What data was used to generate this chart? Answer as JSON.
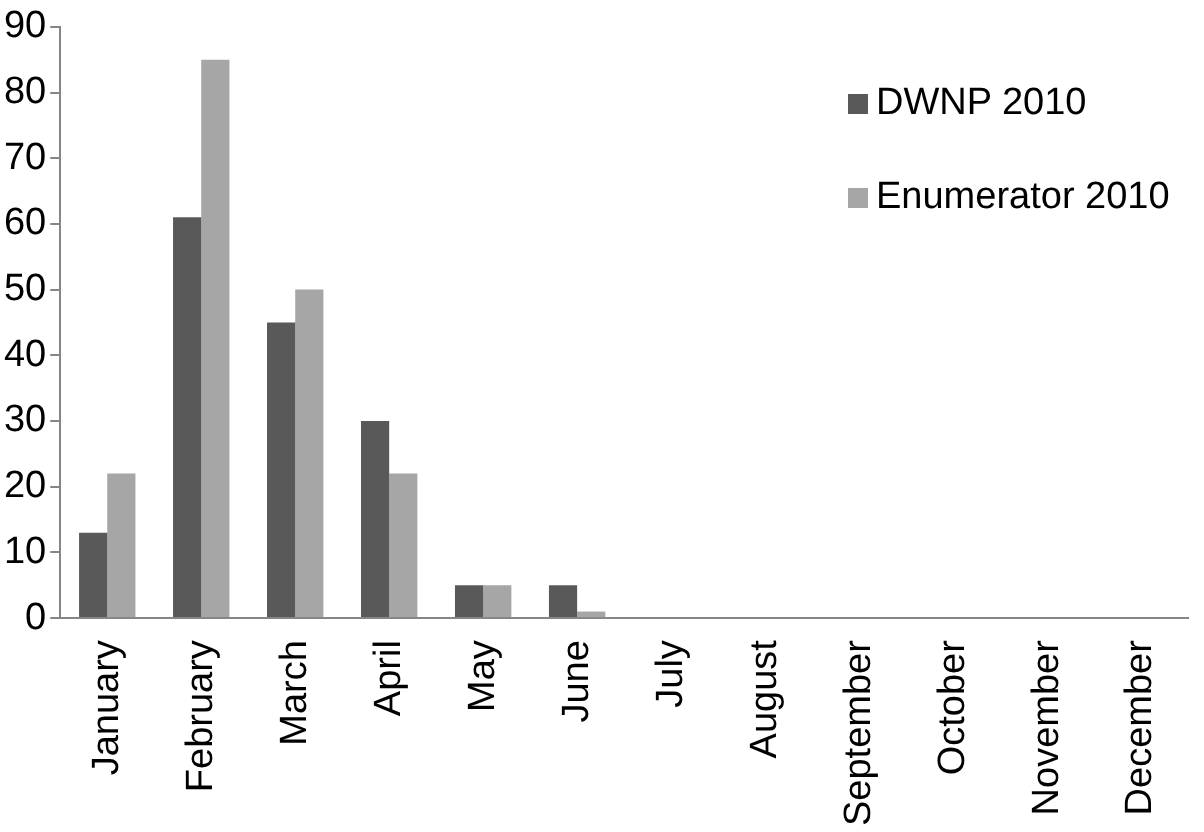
{
  "chart_data": {
    "type": "bar",
    "categories": [
      "January",
      "February",
      "March",
      "April",
      "May",
      "June",
      "July",
      "August",
      "September",
      "October",
      "November",
      "December"
    ],
    "series": [
      {
        "name": "DWNP 2010",
        "color": "#595959",
        "values": [
          13,
          61,
          45,
          30,
          5,
          5,
          0,
          0,
          0,
          0,
          0,
          0
        ]
      },
      {
        "name": "Enumerator 2010",
        "color": "#a6a6a6",
        "values": [
          22,
          85,
          50,
          22,
          5,
          1,
          0,
          0,
          0,
          0,
          0,
          0
        ]
      }
    ],
    "ylim": [
      0,
      90
    ],
    "yticks": [
      0,
      10,
      20,
      30,
      40,
      50,
      60,
      70,
      80,
      90
    ],
    "grid": false,
    "legend": "top right"
  }
}
